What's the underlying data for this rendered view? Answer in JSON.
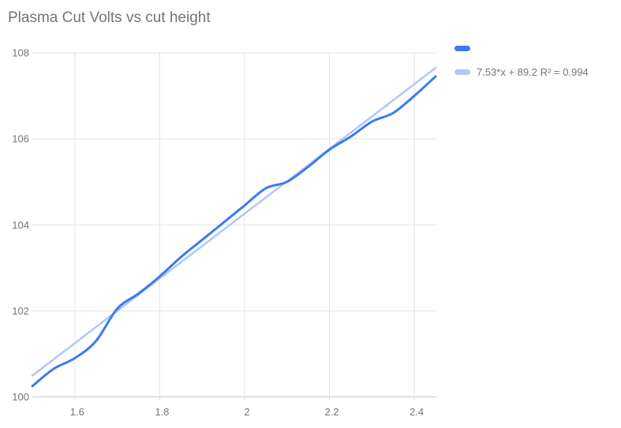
{
  "title": "Plasma Cut Volts vs cut height",
  "legend": {
    "series_label": "",
    "trendline_label": "7.53*x + 89.2 R² = 0.994"
  },
  "colors": {
    "series": "#3d79f2",
    "trendline": "#aec9f8",
    "grid": "#e3e3e3",
    "axis_line": "#c7c7c7",
    "axis_text": "#757575",
    "title_text": "#757575",
    "background": "#ffffff"
  },
  "chart_data": {
    "type": "line",
    "title": "Plasma Cut Volts vs cut height",
    "xlabel": "",
    "ylabel": "",
    "xlim": [
      1.5,
      2.45
    ],
    "ylim": [
      100,
      108
    ],
    "grid": true,
    "legend_position": "top-right",
    "x_tick_values": [
      1.6,
      1.8,
      2,
      2.2,
      2.4
    ],
    "x_tick_labels": [
      "1.6",
      "1.8",
      "2",
      "2.2",
      "2.4"
    ],
    "y_tick_values": [
      100,
      102,
      104,
      106,
      108
    ],
    "y_tick_labels": [
      "100",
      "102",
      "104",
      "106",
      "108"
    ],
    "series": [
      {
        "name": "",
        "color": "#3d79f2",
        "x": [
          1.5,
          1.55,
          1.6,
          1.65,
          1.7,
          1.75,
          1.8,
          1.85,
          1.9,
          1.95,
          2.0,
          2.05,
          2.1,
          2.15,
          2.2,
          2.25,
          2.3,
          2.35,
          2.4,
          2.45
        ],
        "values": [
          100.25,
          100.65,
          100.9,
          101.3,
          102.05,
          102.4,
          102.8,
          103.25,
          103.65,
          104.05,
          104.45,
          104.85,
          105.0,
          105.35,
          105.75,
          106.05,
          106.4,
          106.6,
          107.0,
          107.45
        ]
      }
    ],
    "trendline": {
      "label": "7.53*x + 89.2 R² = 0.994",
      "slope": 7.53,
      "intercept": 89.2,
      "r_squared": 0.994,
      "color": "#aec9f8",
      "x_range": [
        1.5,
        2.45
      ]
    }
  }
}
